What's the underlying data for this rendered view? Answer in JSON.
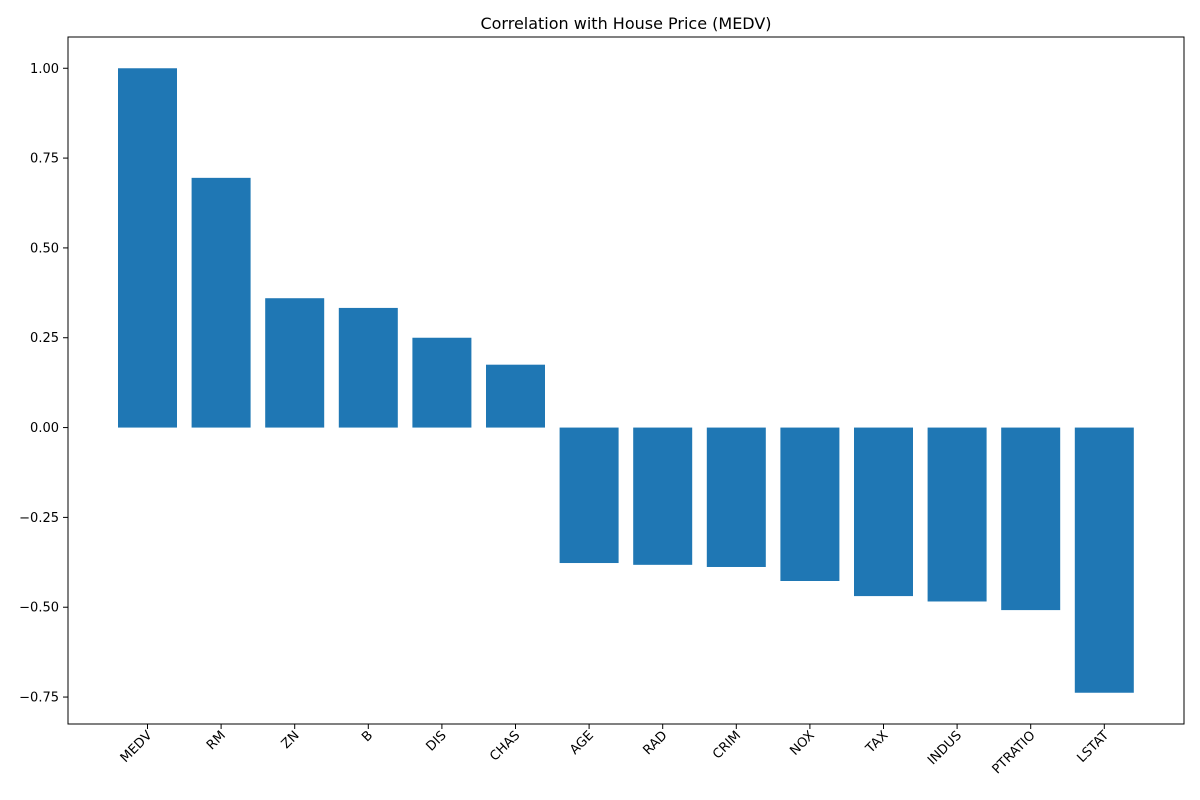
{
  "chart_data": {
    "type": "bar",
    "title": "Correlation with House Price (MEDV)",
    "xlabel": "",
    "ylabel": "",
    "categories": [
      "MEDV",
      "RM",
      "ZN",
      "B",
      "DIS",
      "CHAS",
      "AGE",
      "RAD",
      "CRIM",
      "NOX",
      "TAX",
      "INDUS",
      "PTRATIO",
      "LSTAT"
    ],
    "values": [
      1.0,
      0.695,
      0.36,
      0.333,
      0.25,
      0.175,
      -0.377,
      -0.382,
      -0.388,
      -0.427,
      -0.469,
      -0.484,
      -0.508,
      -0.738
    ],
    "ylim": [
      -0.825,
      1.087
    ],
    "yticks": [
      1.0,
      0.75,
      0.5,
      0.25,
      0.0,
      -0.25,
      -0.5,
      -0.75
    ],
    "ytick_labels": [
      "1.00",
      "0.75",
      "0.50",
      "0.25",
      "0.00",
      "−0.25",
      "−0.50",
      "−0.75"
    ],
    "grid": false,
    "bar_color": "#1f77b4"
  }
}
